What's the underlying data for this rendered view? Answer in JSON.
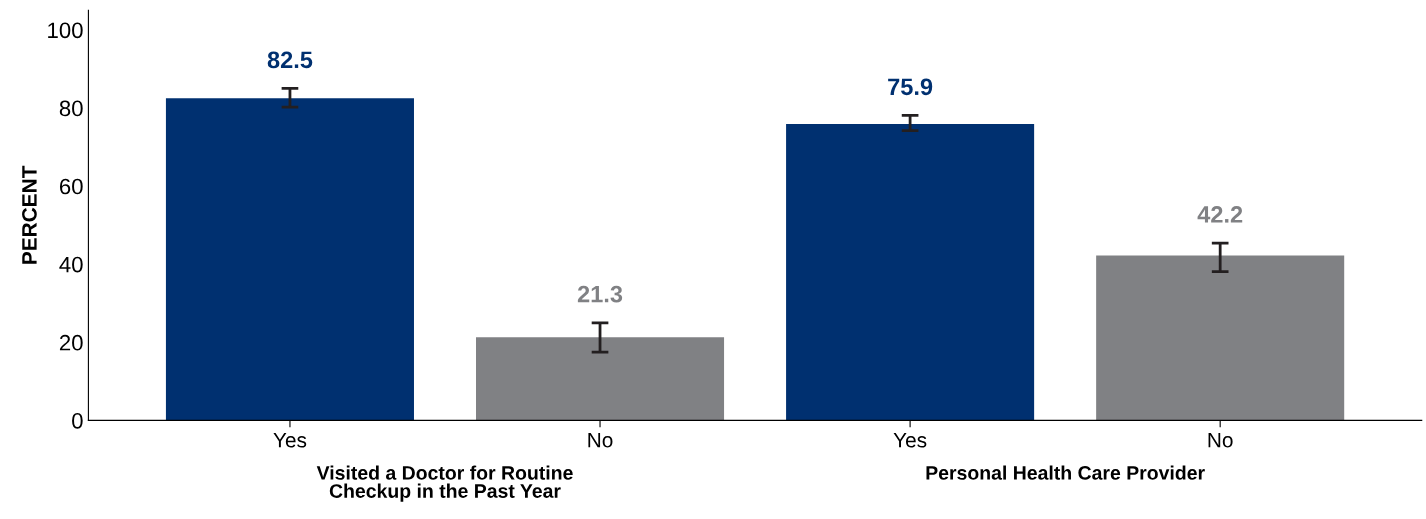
{
  "chart_data": {
    "type": "bar",
    "ylabel": "PERCENT",
    "categories": [
      "Yes",
      "No",
      "Yes",
      "No"
    ],
    "values": [
      82.5,
      21.3,
      75.9,
      42.2
    ],
    "colors": [
      "#003070",
      "#808184",
      "#003070",
      "#808184"
    ],
    "errors": [
      [
        80.2,
        85.0
      ],
      [
        17.5,
        25.0
      ],
      [
        74.2,
        78.1
      ],
      [
        38.1,
        45.4
      ]
    ],
    "data_labels": true,
    "annotations": [
      "Visited a Doctor for Routine\nCheckup in the Past Year",
      "Personal Health Care Provider"
    ],
    "ylim": [
      0,
      105
    ],
    "yticks": [
      0,
      20,
      40,
      60,
      80,
      100
    ],
    "grid": false,
    "legend": false
  }
}
